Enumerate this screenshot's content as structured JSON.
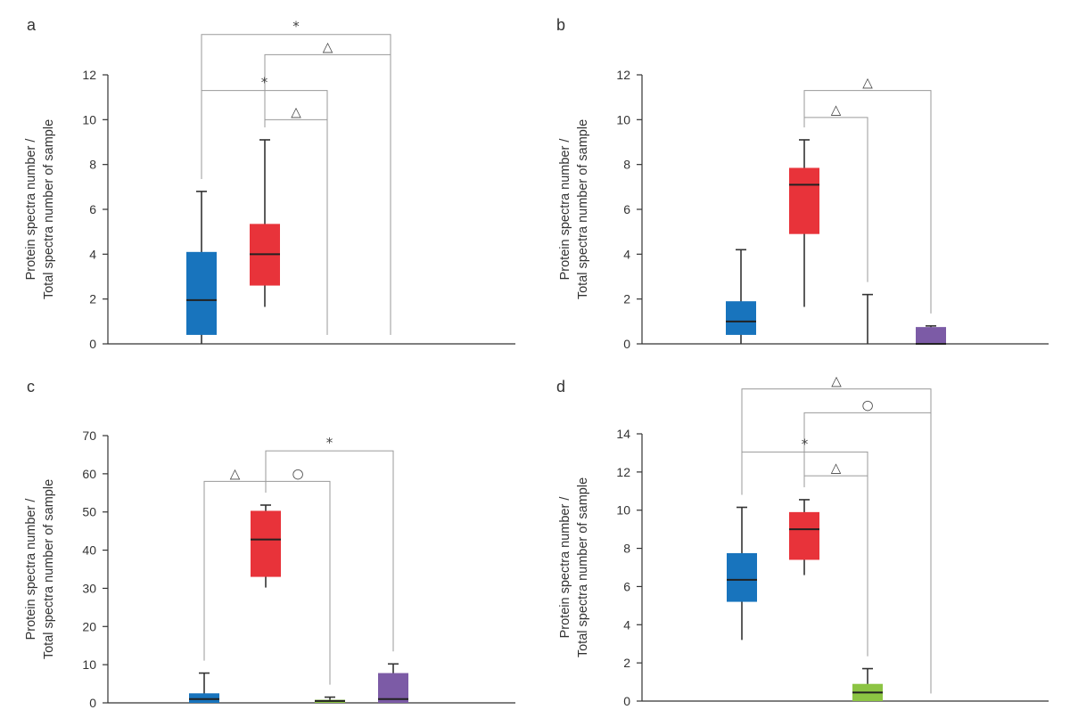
{
  "colors": {
    "blue": "#1874bd",
    "red": "#e8333a",
    "green": "#8cc443",
    "purple": "#7c5ba6",
    "axis": "#333333",
    "bracket": "#9a9a9a"
  },
  "chart_data": [
    {
      "type": "box",
      "panel": "a",
      "ylabel": [
        "Protein spectra number /",
        "Total spectra number of sample"
      ],
      "ylim": [
        0,
        12
      ],
      "yticks": [
        "0",
        "2",
        "4",
        "6",
        "8",
        "10",
        "12"
      ],
      "series": [
        {
          "color": "blue",
          "min": 0,
          "q1": 0.4,
          "median": 1.95,
          "q3": 4.1,
          "max": 6.8
        },
        {
          "color": "red",
          "min": 1.65,
          "q1": 2.6,
          "median": 4.0,
          "q3": 5.35,
          "max": 9.1
        },
        {
          "color": "green",
          "empty": true
        },
        {
          "color": "purple",
          "empty": true
        }
      ],
      "annotations": [
        {
          "from": 0,
          "to": 3,
          "symbol": "*",
          "level": 13.8
        },
        {
          "from": 1,
          "to": 3,
          "symbol": "△",
          "level": 12.9
        },
        {
          "from": 0,
          "to": 2,
          "symbol": "*",
          "level": 11.3
        },
        {
          "from": 1,
          "to": 2,
          "symbol": "△",
          "level": 10.0
        }
      ]
    },
    {
      "type": "box",
      "panel": "b",
      "ylabel": [
        "Protein spectra number /",
        "Total spectra number of sample"
      ],
      "ylim": [
        0,
        12
      ],
      "yticks": [
        "0",
        "2",
        "4",
        "6",
        "8",
        "10",
        "12"
      ],
      "series": [
        {
          "color": "blue",
          "min": 0,
          "q1": 0.4,
          "median": 1.0,
          "q3": 1.9,
          "max": 4.2
        },
        {
          "color": "red",
          "min": 1.65,
          "q1": 4.9,
          "median": 7.1,
          "q3": 7.85,
          "max": 9.1
        },
        {
          "color": "green",
          "min": 0,
          "q1": 0,
          "median": 0,
          "q3": 0,
          "max": 2.2
        },
        {
          "color": "purple",
          "min": 0,
          "q1": 0,
          "median": 0,
          "q3": 0.75,
          "max": 0.8
        }
      ],
      "annotations": [
        {
          "from": 1,
          "to": 3,
          "symbol": "△",
          "level": 11.3
        },
        {
          "from": 1,
          "to": 2,
          "symbol": "△",
          "level": 10.1
        }
      ]
    },
    {
      "type": "box",
      "panel": "c",
      "ylabel": [
        "Protein spectra number /",
        "Total spectra number of sample"
      ],
      "ylim": [
        0,
        70
      ],
      "yticks": [
        "0",
        "10",
        "20",
        "30",
        "40",
        "50",
        "60",
        "70"
      ],
      "series": [
        {
          "color": "blue",
          "min": 0,
          "q1": 0,
          "median": 1.0,
          "q3": 2.5,
          "max": 7.8
        },
        {
          "color": "red",
          "min": 30.2,
          "q1": 33.0,
          "median": 42.8,
          "q3": 50.3,
          "max": 51.8
        },
        {
          "color": "green",
          "min": 0,
          "q1": 0,
          "median": 0.5,
          "q3": 0.8,
          "max": 1.5
        },
        {
          "color": "purple",
          "min": 0,
          "q1": 0,
          "median": 1.0,
          "q3": 7.8,
          "max": 10.2
        }
      ],
      "annotations": [
        {
          "from": 0,
          "to": 1,
          "symbol": "△",
          "level": 58.0
        },
        {
          "from": 1,
          "to": 2,
          "symbol": "○",
          "level": 58.0
        },
        {
          "from": 1,
          "to": 3,
          "symbol": "*",
          "level": 66.0
        }
      ]
    },
    {
      "type": "box",
      "panel": "d",
      "ylabel": [
        "Protein spectra number /",
        "Total spectra number of sample"
      ],
      "ylim": [
        0,
        14
      ],
      "yticks": [
        "0",
        "2",
        "4",
        "6",
        "8",
        "10",
        "12",
        "14"
      ],
      "series": [
        {
          "color": "blue",
          "min": 3.2,
          "q1": 5.2,
          "median": 6.35,
          "q3": 7.75,
          "max": 10.15
        },
        {
          "color": "red",
          "min": 6.6,
          "q1": 7.4,
          "median": 9.0,
          "q3": 9.9,
          "max": 10.55
        },
        {
          "color": "green",
          "min": 0,
          "q1": 0,
          "median": 0.45,
          "q3": 0.9,
          "max": 1.7
        },
        {
          "color": "purple",
          "empty": true
        }
      ],
      "annotations": [
        {
          "from": 0,
          "to": 3,
          "symbol": "△",
          "level": 16.35
        },
        {
          "from": 1,
          "to": 3,
          "symbol": "○",
          "level": 15.1
        },
        {
          "from": 0,
          "to": 2,
          "symbol": "*",
          "level": 13.05
        },
        {
          "from": 1,
          "to": 2,
          "symbol": "△",
          "level": 11.8
        }
      ]
    }
  ]
}
